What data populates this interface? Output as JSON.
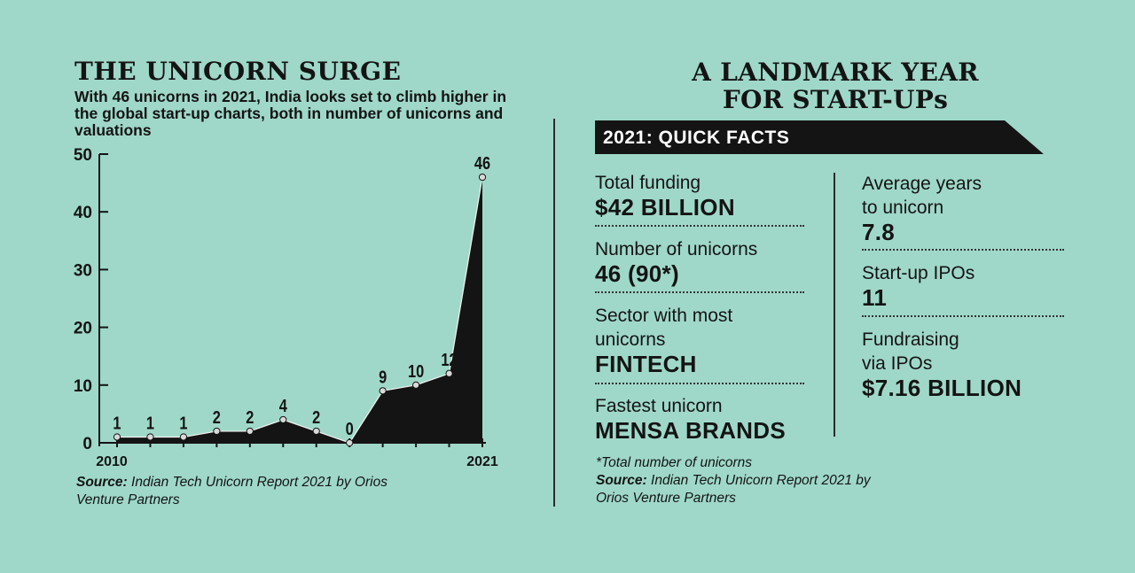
{
  "left_panel": {
    "title": "THE UNICORN SURGE",
    "subtitle": "With 46 unicorns in 2021, India looks set to climb higher in the global start-up charts, both in number of unicorns and valuations",
    "source_label": "Source:",
    "source_text": "Indian Tech Unicorn Report 2021 by Orios Venture Partners"
  },
  "chart_data": {
    "type": "area",
    "x": [
      2010,
      2011,
      2012,
      2013,
      2014,
      2015,
      2016,
      2017,
      2018,
      2019,
      2020,
      2021
    ],
    "values": [
      1,
      1,
      1,
      2,
      2,
      4,
      2,
      0,
      9,
      10,
      12,
      46
    ],
    "data_labels": [
      "1",
      "1",
      "1",
      "2",
      "2",
      "4",
      "2",
      "0",
      "9",
      "10",
      "12",
      "46"
    ],
    "x_tick_labels": [
      "2010",
      "2021"
    ],
    "y_ticks": [
      0,
      10,
      20,
      30,
      40,
      50
    ],
    "y_tick_labels": [
      "0",
      "10",
      "20",
      "30",
      "40",
      "50"
    ],
    "ylim": [
      0,
      50
    ],
    "xlim": [
      2010,
      2021
    ],
    "grid": false,
    "fill_color": "#141414",
    "marker_color": "#d9d9d9"
  },
  "right_panel": {
    "title_line1": "A LANDMARK YEAR",
    "title_line2": "FOR START-UPs",
    "facts_heading": "2021: QUICK FACTS",
    "facts_left": [
      {
        "label_lines": [
          "Total funding"
        ],
        "value": "$42 BILLION"
      },
      {
        "label_lines": [
          "Number of unicorns"
        ],
        "value": "46 (90*)"
      },
      {
        "label_lines": [
          "Sector with most",
          "unicorns"
        ],
        "value": "FINTECH"
      },
      {
        "label_lines": [
          "Fastest unicorn"
        ],
        "value": "MENSA BRANDS"
      }
    ],
    "facts_right": [
      {
        "label_lines": [
          "Average years",
          "to unicorn"
        ],
        "value": "7.8"
      },
      {
        "label_lines": [
          "Start-up IPOs"
        ],
        "value": "11"
      },
      {
        "label_lines": [
          "Fundraising",
          "via IPOs"
        ],
        "value": "$7.16 BILLION"
      }
    ],
    "footnote": "*Total number of unicorns",
    "source_label": "Source:",
    "source_text_line1": "Indian Tech Unicorn Report 2021 by",
    "source_text_line2": "Orios Venture Partners"
  },
  "colors": {
    "background": "#9fd8c9",
    "ink": "#141414",
    "banner_text": "#ffffff"
  }
}
